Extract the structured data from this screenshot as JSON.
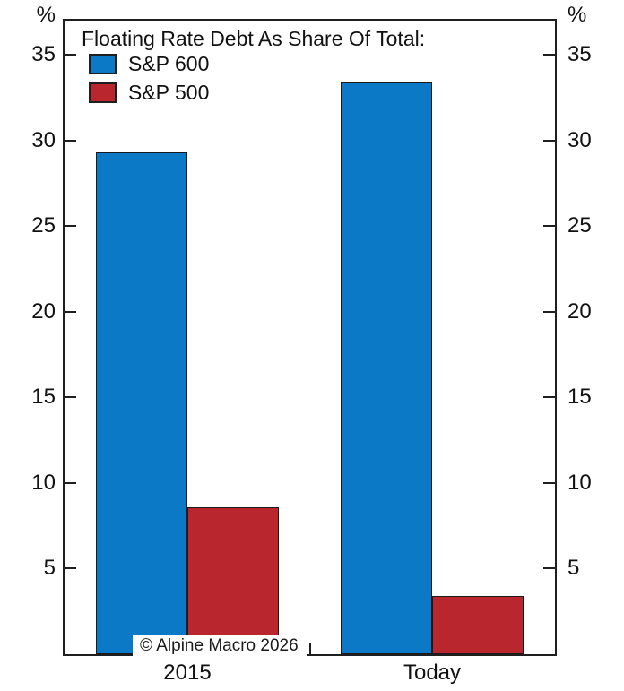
{
  "chart_data": {
    "type": "bar",
    "title": "Floating Rate Debt As Share Of Total:",
    "categories": [
      "2015",
      "Today"
    ],
    "series": [
      {
        "name": "S&P 600",
        "color": "#0b79c6",
        "values": [
          29.3,
          33.4
        ]
      },
      {
        "name": "S&P 500",
        "color": "#b9262e",
        "values": [
          8.6,
          3.4
        ]
      }
    ],
    "ylabel": "%",
    "ylim": [
      0,
      37
    ],
    "yticks": [
      5,
      10,
      15,
      20,
      25,
      30,
      35
    ],
    "axis_unit_left": "%",
    "axis_unit_right": "%",
    "grid": false,
    "legend_position": "top-left-inside",
    "frame_color": "#1f1f1f"
  },
  "footer": {
    "copyright": "© Alpine Macro 2026"
  }
}
